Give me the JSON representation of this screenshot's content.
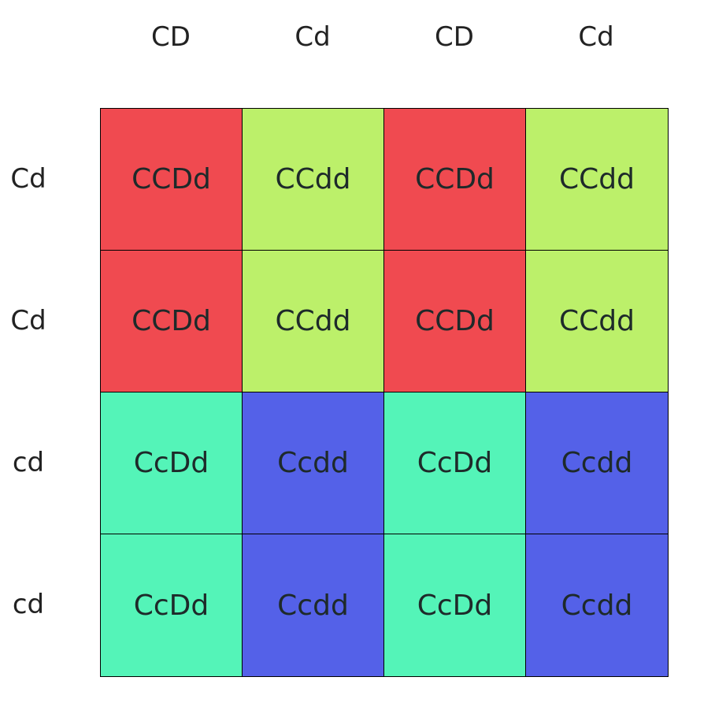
{
  "columns": [
    "CD",
    "Cd",
    "CD",
    "Cd"
  ],
  "rows": [
    "Cd",
    "Cd",
    "cd",
    "cd"
  ],
  "cells": [
    [
      {
        "text": "CCDd",
        "color": "#F04A50"
      },
      {
        "text": "CCdd",
        "color": "#BCF06A"
      },
      {
        "text": "CCDd",
        "color": "#F04A50"
      },
      {
        "text": "CCdd",
        "color": "#BCF06A"
      }
    ],
    [
      {
        "text": "CCDd",
        "color": "#F04A50"
      },
      {
        "text": "CCdd",
        "color": "#BCF06A"
      },
      {
        "text": "CCDd",
        "color": "#F04A50"
      },
      {
        "text": "CCdd",
        "color": "#BCF06A"
      }
    ],
    [
      {
        "text": "CcDd",
        "color": "#54F4B8"
      },
      {
        "text": "Ccdd",
        "color": "#5461E8"
      },
      {
        "text": "CcDd",
        "color": "#54F4B8"
      },
      {
        "text": "Ccdd",
        "color": "#5461E8"
      }
    ],
    [
      {
        "text": "CcDd",
        "color": "#54F4B8"
      },
      {
        "text": "Ccdd",
        "color": "#5461E8"
      },
      {
        "text": "CcDd",
        "color": "#54F4B8"
      },
      {
        "text": "Ccdd",
        "color": "#5461E8"
      }
    ]
  ]
}
